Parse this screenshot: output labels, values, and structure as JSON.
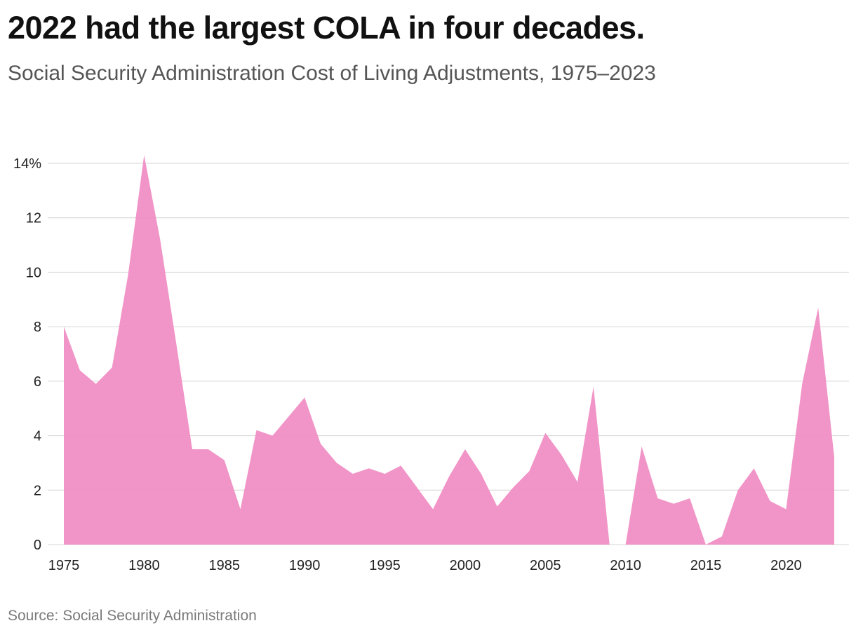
{
  "title": "2022 had the largest COLA in four decades.",
  "subtitle": "Social Security Administration Cost of Living Adjustments, 1975–2023",
  "source": "Source: Social Security Administration",
  "colors": {
    "area": "#f08ec4",
    "grid": "#d6d6d6"
  },
  "chart_data": {
    "type": "area",
    "title": "2022 had the largest COLA in four decades.",
    "subtitle": "Social Security Administration Cost of Living Adjustments, 1975–2023",
    "xlabel": "",
    "ylabel": "",
    "grid": true,
    "xlim": [
      1975,
      2023
    ],
    "ylim": [
      0,
      14
    ],
    "x_ticks": [
      "1975",
      "1980",
      "1985",
      "1990",
      "1995",
      "2000",
      "2005",
      "2010",
      "2015",
      "2020"
    ],
    "y_ticks": [
      "0",
      "2",
      "4",
      "6",
      "8",
      "10",
      "12",
      "14%"
    ],
    "x": [
      1975,
      1976,
      1977,
      1978,
      1979,
      1980,
      1981,
      1982,
      1983,
      1984,
      1985,
      1986,
      1987,
      1988,
      1989,
      1990,
      1991,
      1992,
      1993,
      1994,
      1995,
      1996,
      1997,
      1998,
      1999,
      2000,
      2001,
      2002,
      2003,
      2004,
      2005,
      2006,
      2007,
      2008,
      2009,
      2010,
      2011,
      2012,
      2013,
      2014,
      2015,
      2016,
      2017,
      2018,
      2019,
      2020,
      2021,
      2022,
      2023
    ],
    "values": [
      8.0,
      6.4,
      5.9,
      6.5,
      9.9,
      14.3,
      11.2,
      7.4,
      3.5,
      3.5,
      3.1,
      1.3,
      4.2,
      4.0,
      4.7,
      5.4,
      3.7,
      3.0,
      2.6,
      2.8,
      2.6,
      2.9,
      2.1,
      1.3,
      2.5,
      3.5,
      2.6,
      1.4,
      2.1,
      2.7,
      4.1,
      3.3,
      2.3,
      5.8,
      0,
      0,
      3.6,
      1.7,
      1.5,
      1.7,
      0,
      0.3,
      2.0,
      2.8,
      1.6,
      1.3,
      5.9,
      8.7,
      3.2
    ]
  }
}
